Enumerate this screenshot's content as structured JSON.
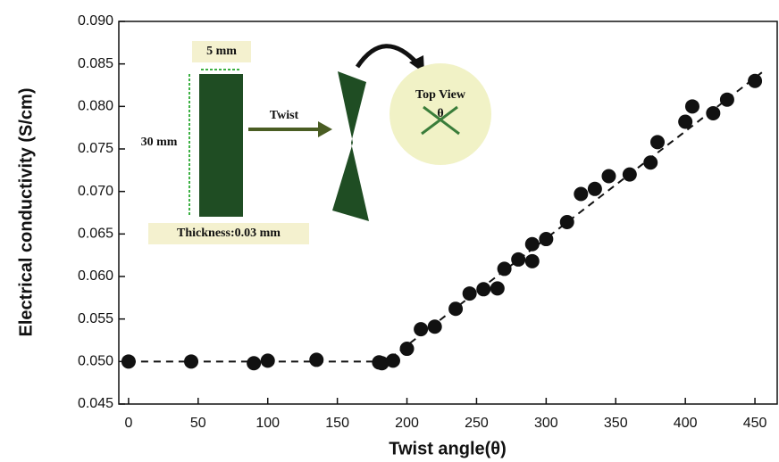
{
  "chart_data": {
    "type": "scatter",
    "x_label": "Twist angle(θ)",
    "y_label": "Electrical conductivity (S/cm)",
    "x": [
      0,
      45,
      90,
      100,
      135,
      180,
      182,
      190,
      200,
      210,
      220,
      235,
      245,
      255,
      265,
      270,
      280,
      290,
      290,
      300,
      315,
      325,
      335,
      345,
      360,
      375,
      380,
      400,
      405,
      420,
      430,
      450
    ],
    "values": [
      0.05,
      0.05,
      0.0498,
      0.0501,
      0.0502,
      0.0499,
      0.0498,
      0.0501,
      0.0515,
      0.0538,
      0.0541,
      0.0562,
      0.058,
      0.0585,
      0.0586,
      0.0609,
      0.062,
      0.0638,
      0.0618,
      0.0644,
      0.0664,
      0.0697,
      0.0703,
      0.0718,
      0.072,
      0.0734,
      0.0758,
      0.0782,
      0.08,
      0.0792,
      0.0808,
      0.083
    ],
    "color": "#111111",
    "fit_line": {
      "x": [
        0,
        185,
        455
      ],
      "values": [
        0.05,
        0.05,
        0.084
      ]
    },
    "xlim": [
      -7,
      466
    ],
    "ylim": [
      0.045,
      0.09
    ],
    "xticks": [
      0,
      50,
      100,
      150,
      200,
      250,
      300,
      350,
      400,
      450
    ],
    "yticks": [
      {
        "value": 0.045,
        "label": "0.045"
      },
      {
        "value": 0.05,
        "label": "0.050"
      },
      {
        "value": 0.055,
        "label": "0.055"
      },
      {
        "value": 0.06,
        "label": "0.060"
      },
      {
        "value": 0.065,
        "label": "0.065"
      },
      {
        "value": 0.07,
        "label": "0.070"
      },
      {
        "value": 0.075,
        "label": "0.075"
      },
      {
        "value": 0.08,
        "label": "0.080"
      },
      {
        "value": 0.085,
        "label": "0.085"
      },
      {
        "value": 0.09,
        "label": "0.090"
      }
    ],
    "annotations": [
      "5 mm",
      "30 mm",
      "Twist",
      "Thickness:0.03 mm",
      "Top View",
      "θ"
    ]
  }
}
